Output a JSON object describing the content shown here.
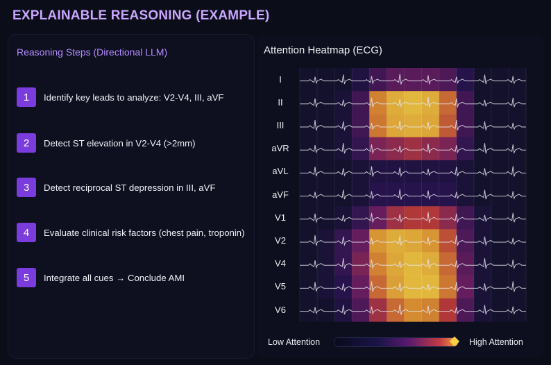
{
  "title": "EXPLAINABLE REASONING (EXAMPLE)",
  "reasoning": {
    "title": "Reasoning Steps (Directional LLM)",
    "steps": [
      {
        "num": "1",
        "text": "Identify key leads to analyze: V2-V4, III, aVF"
      },
      {
        "num": "2",
        "text": "Detect ST elevation in V2-V4 (>2mm)"
      },
      {
        "num": "3",
        "text": "Detect reciprocal ST depression in III, aVF"
      },
      {
        "num": "4",
        "text": "Evaluate clinical risk factors (chest pain, troponin)"
      },
      {
        "num": "5",
        "text": "Integrate all cues → Conclude AMI"
      }
    ]
  },
  "heatmap": {
    "title": "Attention Heatmap (ECG)",
    "leads": [
      "I",
      "II",
      "III",
      "aVR",
      "aVL",
      "aVF",
      "V1",
      "V2",
      "V4",
      "V5",
      "V6"
    ],
    "legend_low": "Low Attention",
    "legend_high": "High Attention",
    "colors": {
      "low": "#0a0a1c",
      "mid": "#5a1a6e",
      "high_mid": "#c23a45",
      "high": "#f7d046"
    }
  },
  "chart_data": {
    "type": "heatmap",
    "title": "Attention Heatmap (ECG)",
    "rows": [
      "I",
      "II",
      "III",
      "aVR",
      "aVL",
      "aVF",
      "V1",
      "V2",
      "V4",
      "V5",
      "V6"
    ],
    "columns": 13,
    "values": [
      [
        0.05,
        0.05,
        0.05,
        0.15,
        0.3,
        0.4,
        0.4,
        0.4,
        0.35,
        0.2,
        0.05,
        0.05,
        0.05
      ],
      [
        0.05,
        0.05,
        0.1,
        0.3,
        0.8,
        0.92,
        0.95,
        0.92,
        0.75,
        0.3,
        0.05,
        0.05,
        0.05
      ],
      [
        0.05,
        0.05,
        0.1,
        0.3,
        0.78,
        0.9,
        0.92,
        0.9,
        0.72,
        0.3,
        0.05,
        0.05,
        0.05
      ],
      [
        0.05,
        0.05,
        0.1,
        0.25,
        0.5,
        0.55,
        0.6,
        0.55,
        0.5,
        0.25,
        0.05,
        0.05,
        0.05
      ],
      [
        0.05,
        0.05,
        0.05,
        0.1,
        0.15,
        0.15,
        0.15,
        0.15,
        0.15,
        0.1,
        0.05,
        0.05,
        0.05
      ],
      [
        0.05,
        0.05,
        0.05,
        0.1,
        0.2,
        0.2,
        0.2,
        0.2,
        0.2,
        0.1,
        0.05,
        0.05,
        0.05
      ],
      [
        0.05,
        0.05,
        0.1,
        0.25,
        0.45,
        0.6,
        0.65,
        0.65,
        0.55,
        0.3,
        0.1,
        0.05,
        0.05
      ],
      [
        0.05,
        0.1,
        0.25,
        0.45,
        0.85,
        0.92,
        0.9,
        0.85,
        0.7,
        0.35,
        0.1,
        0.05,
        0.05
      ],
      [
        0.05,
        0.1,
        0.25,
        0.5,
        0.8,
        0.9,
        0.95,
        0.92,
        0.75,
        0.4,
        0.1,
        0.05,
        0.05
      ],
      [
        0.05,
        0.1,
        0.2,
        0.45,
        0.75,
        0.88,
        0.95,
        0.95,
        0.78,
        0.45,
        0.1,
        0.05,
        0.05
      ],
      [
        0.05,
        0.05,
        0.15,
        0.35,
        0.6,
        0.75,
        0.82,
        0.8,
        0.65,
        0.35,
        0.1,
        0.05,
        0.05
      ]
    ],
    "legend": "bottom"
  }
}
